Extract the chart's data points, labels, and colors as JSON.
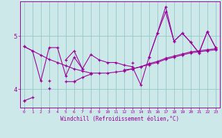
{
  "xlabel": "Windchill (Refroidissement éolien,°C)",
  "bg_color": "#cce8e8",
  "line_color": "#990099",
  "grid_color": "#99cccc",
  "xlim": [
    -0.5,
    23.5
  ],
  "ylim": [
    3.65,
    5.65
  ],
  "yticks": [
    4,
    5
  ],
  "xticks": [
    0,
    1,
    2,
    3,
    4,
    5,
    6,
    7,
    8,
    9,
    10,
    11,
    12,
    13,
    14,
    15,
    16,
    17,
    18,
    19,
    20,
    21,
    22,
    23
  ],
  "series": [
    [
      4.8,
      4.72,
      4.64,
      4.56,
      4.5,
      4.44,
      4.38,
      4.34,
      4.3,
      4.3,
      4.3,
      4.32,
      4.34,
      4.38,
      4.42,
      4.48,
      4.52,
      4.58,
      4.62,
      4.66,
      4.7,
      4.72,
      4.74,
      4.76
    ],
    [
      4.8,
      4.72,
      4.15,
      4.78,
      4.78,
      4.25,
      4.6,
      4.38,
      4.65,
      4.55,
      4.5,
      4.5,
      4.45,
      4.42,
      4.08,
      4.6,
      5.05,
      5.45,
      4.9,
      5.05,
      4.88,
      4.68,
      5.08,
      4.78
    ],
    [
      null,
      null,
      null,
      4.15,
      null,
      4.55,
      4.72,
      4.38,
      null,
      null,
      null,
      null,
      null,
      4.5,
      null,
      4.6,
      5.05,
      5.55,
      4.9,
      5.05,
      4.88,
      4.68,
      5.08,
      4.78
    ],
    [
      3.78,
      3.84,
      null,
      4.02,
      null,
      4.14,
      4.14,
      4.22,
      4.28,
      null,
      null,
      null,
      4.36,
      4.38,
      4.42,
      4.46,
      4.5,
      4.56,
      4.6,
      4.64,
      4.68,
      4.7,
      4.72,
      4.74
    ],
    [
      3.78,
      null,
      null,
      null,
      null,
      null,
      4.14,
      null,
      4.28,
      null,
      null,
      null,
      null,
      4.38,
      null,
      4.46,
      null,
      null,
      null,
      null,
      null,
      null,
      null,
      4.74
    ]
  ]
}
